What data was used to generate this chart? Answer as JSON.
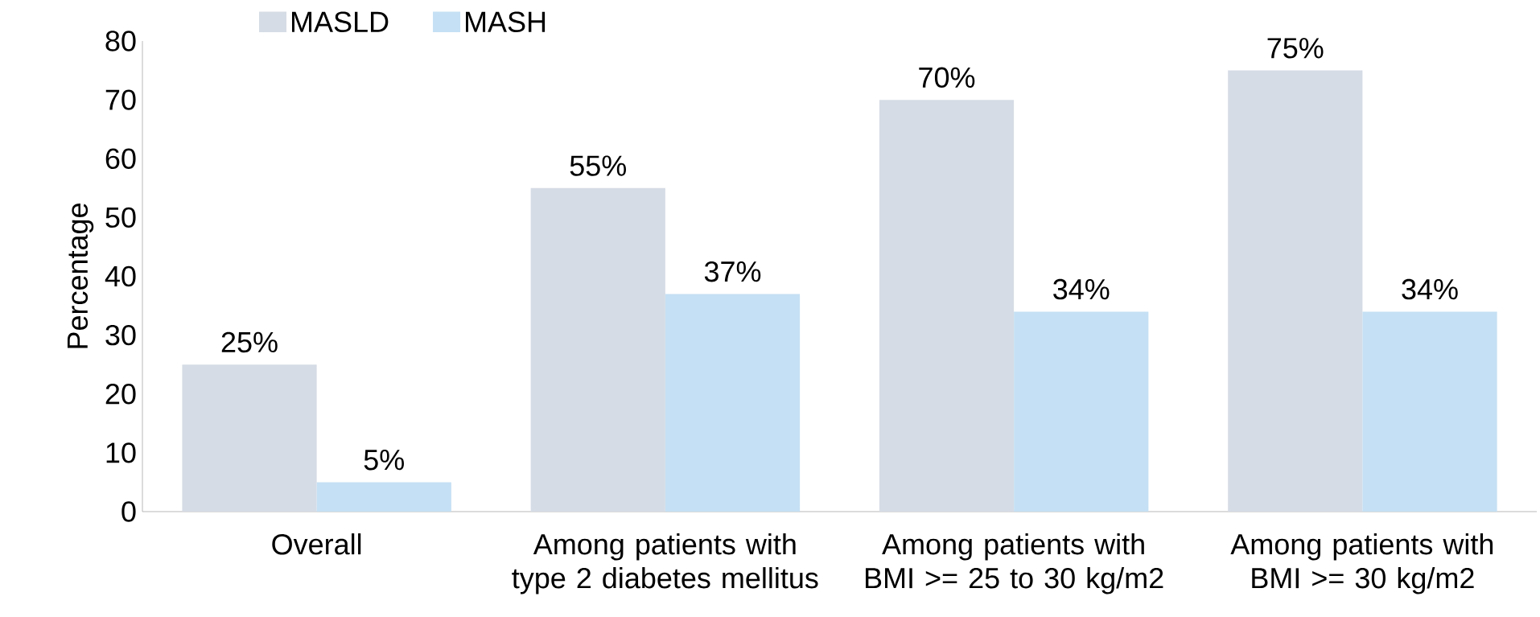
{
  "chart_data": {
    "type": "bar",
    "ylabel": "Percentage",
    "categories": [
      "Overall",
      "Among patients with type 2 diabetes mellitus",
      "Among patients with BMI >= 25 to 30 kg/m2",
      "Among patients with BMI >= 30 kg/m2"
    ],
    "series": [
      {
        "name": "MASLD",
        "color": "#d6dce5",
        "values": [
          25,
          55,
          70,
          75
        ],
        "value_labels": [
          "25%",
          "55%",
          "70%",
          "75%"
        ]
      },
      {
        "name": "MASH",
        "color": "#c5e0f4",
        "values": [
          5,
          37,
          34,
          34
        ],
        "value_labels": [
          "5%",
          "37%",
          "34%",
          "34%"
        ]
      }
    ],
    "ylim": [
      0,
      80
    ],
    "yticks": [
      0,
      10,
      20,
      30,
      40,
      50,
      60,
      70,
      80
    ],
    "legend": "top left"
  }
}
